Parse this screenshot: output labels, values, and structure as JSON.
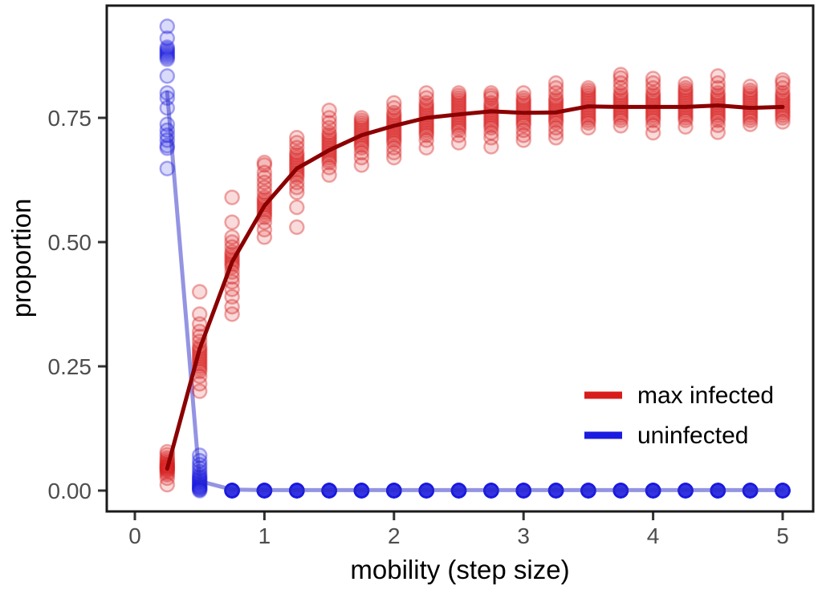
{
  "chart_data": {
    "type": "scatter",
    "title": "",
    "xlabel": "mobility (step size)",
    "ylabel": "proportion",
    "xlim": [
      -0.22,
      5.24
    ],
    "ylim": [
      -0.042,
      0.976
    ],
    "grid": false,
    "x_ticks": [
      0,
      1,
      2,
      3,
      4,
      5
    ],
    "x_tick_labels": [
      "0",
      "1",
      "2",
      "3",
      "4",
      "5"
    ],
    "y_ticks": [
      0,
      0.25,
      0.5,
      0.75
    ],
    "y_tick_labels": [
      "0.00",
      "0.25",
      "0.50",
      "0.75"
    ],
    "x": [
      0.25,
      0.5,
      0.75,
      1,
      1.25,
      1.5,
      1.75,
      2,
      2.25,
      2.5,
      2.75,
      3,
      3.25,
      3.5,
      3.75,
      4,
      4.25,
      4.5,
      4.75,
      5
    ],
    "series": [
      {
        "name": "max infected",
        "point_color": "#d81c1c",
        "line_color": "#8b0000",
        "line_opacity": 1,
        "means": [
          0.044,
          0.285,
          0.46,
          0.573,
          0.648,
          0.685,
          0.715,
          0.734,
          0.75,
          0.757,
          0.763,
          0.76,
          0.761,
          0.773,
          0.772,
          0.772,
          0.772,
          0.775,
          0.77,
          0.772
        ],
        "points": [
          [
            0.012,
            0.025,
            0.032,
            0.036,
            0.04,
            0.042,
            0.044,
            0.046,
            0.048,
            0.05,
            0.052,
            0.055,
            0.058,
            0.062,
            0.066,
            0.072,
            0.078
          ],
          [
            0.2,
            0.215,
            0.23,
            0.24,
            0.245,
            0.25,
            0.255,
            0.26,
            0.265,
            0.27,
            0.275,
            0.28,
            0.285,
            0.29,
            0.3,
            0.31,
            0.32,
            0.335,
            0.355,
            0.4
          ],
          [
            0.355,
            0.37,
            0.39,
            0.405,
            0.42,
            0.43,
            0.44,
            0.45,
            0.455,
            0.46,
            0.465,
            0.47,
            0.475,
            0.48,
            0.49,
            0.5,
            0.51,
            0.54,
            0.59
          ],
          [
            0.51,
            0.525,
            0.54,
            0.55,
            0.555,
            0.56,
            0.565,
            0.57,
            0.575,
            0.58,
            0.585,
            0.59,
            0.6,
            0.61,
            0.62,
            0.63,
            0.64,
            0.655,
            0.66
          ],
          [
            0.53,
            0.57,
            0.6,
            0.61,
            0.62,
            0.63,
            0.635,
            0.64,
            0.645,
            0.65,
            0.655,
            0.66,
            0.665,
            0.67,
            0.675,
            0.68,
            0.69,
            0.7,
            0.71
          ],
          [
            0.635,
            0.65,
            0.66,
            0.665,
            0.67,
            0.675,
            0.68,
            0.685,
            0.69,
            0.695,
            0.7,
            0.705,
            0.71,
            0.715,
            0.72,
            0.73,
            0.74,
            0.75,
            0.765
          ],
          [
            0.655,
            0.67,
            0.68,
            0.69,
            0.695,
            0.7,
            0.705,
            0.71,
            0.715,
            0.72,
            0.725,
            0.73,
            0.735,
            0.74,
            0.745,
            0.75
          ],
          [
            0.67,
            0.68,
            0.69,
            0.7,
            0.705,
            0.71,
            0.715,
            0.72,
            0.725,
            0.73,
            0.735,
            0.74,
            0.745,
            0.75,
            0.755,
            0.76,
            0.77,
            0.78
          ],
          [
            0.69,
            0.705,
            0.715,
            0.72,
            0.725,
            0.73,
            0.735,
            0.74,
            0.745,
            0.75,
            0.755,
            0.76,
            0.765,
            0.77,
            0.775,
            0.78,
            0.79,
            0.8
          ],
          [
            0.7,
            0.715,
            0.725,
            0.73,
            0.735,
            0.74,
            0.745,
            0.75,
            0.755,
            0.76,
            0.765,
            0.77,
            0.775,
            0.78,
            0.785,
            0.79,
            0.795,
            0.8
          ],
          [
            0.692,
            0.71,
            0.72,
            0.73,
            0.735,
            0.74,
            0.745,
            0.75,
            0.755,
            0.76,
            0.765,
            0.77,
            0.775,
            0.78,
            0.79,
            0.795,
            0.8
          ],
          [
            0.705,
            0.715,
            0.725,
            0.735,
            0.74,
            0.745,
            0.75,
            0.755,
            0.76,
            0.765,
            0.77,
            0.775,
            0.78,
            0.785,
            0.79,
            0.8
          ],
          [
            0.71,
            0.72,
            0.73,
            0.74,
            0.745,
            0.75,
            0.755,
            0.76,
            0.765,
            0.77,
            0.775,
            0.78,
            0.785,
            0.79,
            0.8,
            0.81,
            0.82
          ],
          [
            0.73,
            0.74,
            0.745,
            0.75,
            0.755,
            0.76,
            0.765,
            0.77,
            0.775,
            0.78,
            0.785,
            0.79,
            0.795,
            0.8,
            0.805,
            0.81
          ],
          [
            0.734,
            0.745,
            0.75,
            0.755,
            0.76,
            0.765,
            0.77,
            0.775,
            0.78,
            0.785,
            0.79,
            0.795,
            0.8,
            0.81,
            0.82,
            0.83,
            0.837
          ],
          [
            0.72,
            0.735,
            0.745,
            0.75,
            0.755,
            0.76,
            0.765,
            0.77,
            0.775,
            0.78,
            0.785,
            0.79,
            0.795,
            0.8,
            0.81,
            0.82,
            0.829
          ],
          [
            0.732,
            0.745,
            0.75,
            0.755,
            0.76,
            0.765,
            0.77,
            0.775,
            0.78,
            0.785,
            0.79,
            0.795,
            0.8,
            0.805,
            0.81,
            0.818
          ],
          [
            0.721,
            0.735,
            0.745,
            0.75,
            0.755,
            0.76,
            0.765,
            0.77,
            0.775,
            0.78,
            0.785,
            0.79,
            0.795,
            0.8,
            0.81,
            0.82,
            0.834
          ],
          [
            0.737,
            0.745,
            0.75,
            0.755,
            0.76,
            0.765,
            0.77,
            0.775,
            0.78,
            0.785,
            0.79,
            0.795,
            0.8,
            0.805,
            0.813
          ],
          [
            0.742,
            0.75,
            0.755,
            0.76,
            0.765,
            0.77,
            0.775,
            0.78,
            0.785,
            0.79,
            0.795,
            0.8,
            0.81,
            0.82,
            0.826
          ]
        ]
      },
      {
        "name": "uninfected",
        "point_color": "#1b1be0",
        "line_color": "#2a2ac8",
        "line_opacity": 0.5,
        "means": [
          0.801,
          0.019,
          0.002,
          0.001,
          0.001,
          0.001,
          0.001,
          0.001,
          0.001,
          0.001,
          0.001,
          0.001,
          0.001,
          0.001,
          0.001,
          0.001,
          0.001,
          0.001,
          0.001,
          0.001
        ],
        "points": [
          [
            0.648,
            0.689,
            0.694,
            0.705,
            0.715,
            0.725,
            0.737,
            0.77,
            0.79,
            0.8,
            0.834,
            0.868,
            0.872,
            0.876,
            0.88,
            0.884,
            0.888,
            0.892,
            0.91,
            0.934
          ],
          [
            0,
            0.002,
            0.004,
            0.006,
            0.008,
            0.01,
            0.013,
            0.016,
            0.019,
            0.022,
            0.025,
            0.028,
            0.032,
            0.038,
            0.045,
            0.052,
            0.06,
            0.071
          ],
          [
            0,
            0,
            0,
            0,
            0,
            0,
            0,
            0,
            0,
            0,
            0,
            0
          ],
          [
            0,
            0,
            0,
            0,
            0,
            0,
            0,
            0,
            0,
            0,
            0,
            0
          ],
          [
            0,
            0,
            0,
            0,
            0,
            0,
            0,
            0,
            0,
            0,
            0,
            0
          ],
          [
            0,
            0,
            0,
            0,
            0,
            0,
            0,
            0,
            0,
            0,
            0,
            0
          ],
          [
            0,
            0,
            0,
            0,
            0,
            0,
            0,
            0,
            0,
            0,
            0,
            0
          ],
          [
            0,
            0,
            0,
            0,
            0,
            0,
            0,
            0,
            0,
            0,
            0,
            0
          ],
          [
            0,
            0,
            0,
            0,
            0,
            0,
            0,
            0,
            0,
            0,
            0,
            0
          ],
          [
            0,
            0,
            0,
            0,
            0,
            0,
            0,
            0,
            0,
            0,
            0,
            0
          ],
          [
            0,
            0,
            0,
            0,
            0,
            0,
            0,
            0,
            0,
            0,
            0,
            0
          ],
          [
            0,
            0,
            0,
            0,
            0,
            0,
            0,
            0,
            0,
            0,
            0,
            0
          ],
          [
            0,
            0,
            0,
            0,
            0,
            0,
            0,
            0,
            0,
            0,
            0,
            0
          ],
          [
            0,
            0,
            0,
            0,
            0,
            0,
            0,
            0,
            0,
            0,
            0,
            0
          ],
          [
            0,
            0,
            0,
            0,
            0,
            0,
            0,
            0,
            0,
            0,
            0,
            0
          ],
          [
            0,
            0,
            0,
            0,
            0,
            0,
            0,
            0,
            0,
            0,
            0,
            0
          ],
          [
            0,
            0,
            0,
            0,
            0,
            0,
            0,
            0,
            0,
            0,
            0,
            0
          ],
          [
            0,
            0,
            0,
            0,
            0,
            0,
            0,
            0,
            0,
            0,
            0,
            0
          ],
          [
            0,
            0,
            0,
            0,
            0,
            0,
            0,
            0,
            0,
            0,
            0,
            0
          ],
          [
            0,
            0,
            0,
            0,
            0,
            0,
            0,
            0,
            0,
            0,
            0,
            0
          ]
        ]
      }
    ],
    "legend": {
      "position": "bottom-right",
      "entries": [
        {
          "label": "max infected",
          "color": "#d81c1c"
        },
        {
          "label": "uninfected",
          "color": "#1b1be0"
        }
      ]
    },
    "colors": {
      "panel_background": "#ffffff",
      "panel_border": "#1a1a1a",
      "tick_mark": "#333333",
      "tick_label": "#4d4d4d",
      "axis_title": "#000000"
    }
  }
}
